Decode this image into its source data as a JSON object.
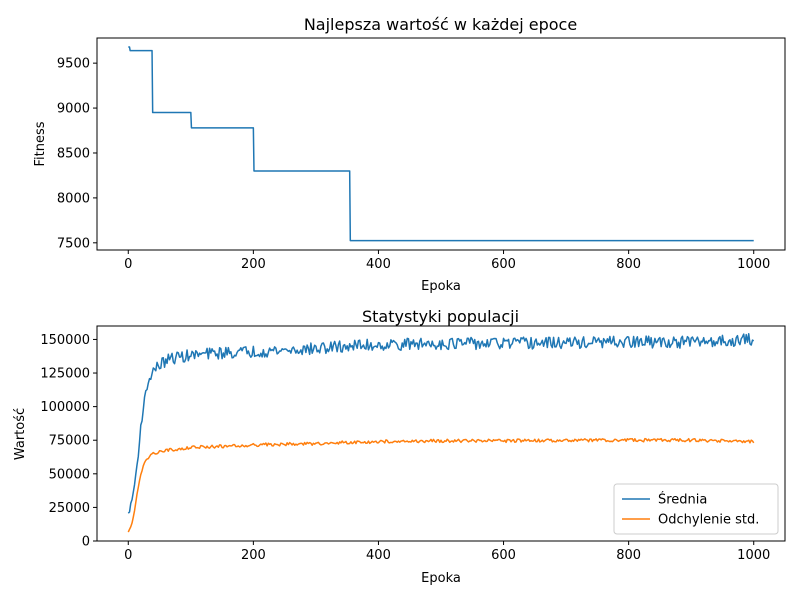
{
  "chart_data": [
    {
      "type": "line",
      "title": "Najlepsza wartość w każdej epoce",
      "xlabel": "Epoka",
      "ylabel": "Fitness",
      "xlim": [
        -50,
        1050
      ],
      "ylim": [
        7420,
        9780
      ],
      "xticks": [
        0,
        200,
        400,
        600,
        800,
        1000
      ],
      "yticks": [
        7500,
        8000,
        8500,
        9000,
        9500
      ],
      "grid": false,
      "legend": null,
      "series": [
        {
          "color": "#1f77b4",
          "x": [
            0,
            2,
            3,
            38,
            39,
            100,
            101,
            200,
            201,
            354,
            355,
            1000
          ],
          "y": [
            9680,
            9680,
            9640,
            9640,
            8950,
            8950,
            8780,
            8780,
            8300,
            8300,
            7525,
            7525
          ]
        }
      ]
    },
    {
      "type": "line",
      "title": "Statystyki populacji",
      "xlabel": "Epoka",
      "ylabel": "Wartość",
      "xlim": [
        -50,
        1050
      ],
      "ylim": [
        0,
        160000
      ],
      "xticks": [
        0,
        200,
        400,
        600,
        800,
        1000
      ],
      "yticks": [
        0,
        25000,
        50000,
        75000,
        100000,
        125000,
        150000
      ],
      "grid": false,
      "legend": "bottom-right",
      "series": [
        {
          "name": "Średnia",
          "color": "#1f77b4",
          "x": [
            0,
            5,
            10,
            15,
            20,
            25,
            30,
            35,
            40,
            50,
            60,
            70,
            80,
            100,
            120,
            150,
            200,
            250,
            300,
            350,
            400,
            450,
            500,
            600,
            700,
            800,
            900,
            1000
          ],
          "y": [
            20000,
            28000,
            42000,
            60000,
            85000,
            102000,
            115000,
            122000,
            127000,
            131000,
            134000,
            136000,
            137000,
            138000,
            139000,
            140000,
            141000,
            142000,
            143000,
            145000,
            146000,
            146500,
            147000,
            147000,
            147500,
            148000,
            148000,
            150000
          ],
          "noise": 4500
        },
        {
          "name": "Odchylenie std.",
          "color": "#ff7f0e",
          "x": [
            0,
            5,
            10,
            15,
            20,
            25,
            30,
            35,
            40,
            50,
            60,
            80,
            100,
            150,
            200,
            300,
            350,
            400,
            500,
            600,
            700,
            800,
            900,
            1000
          ],
          "y": [
            7000,
            11000,
            22000,
            38000,
            50000,
            57000,
            61000,
            63500,
            65000,
            66500,
            67500,
            68500,
            69500,
            70500,
            71500,
            72500,
            73500,
            74000,
            74500,
            74500,
            75000,
            75000,
            75000,
            74000
          ],
          "noise": 1200
        }
      ]
    }
  ]
}
